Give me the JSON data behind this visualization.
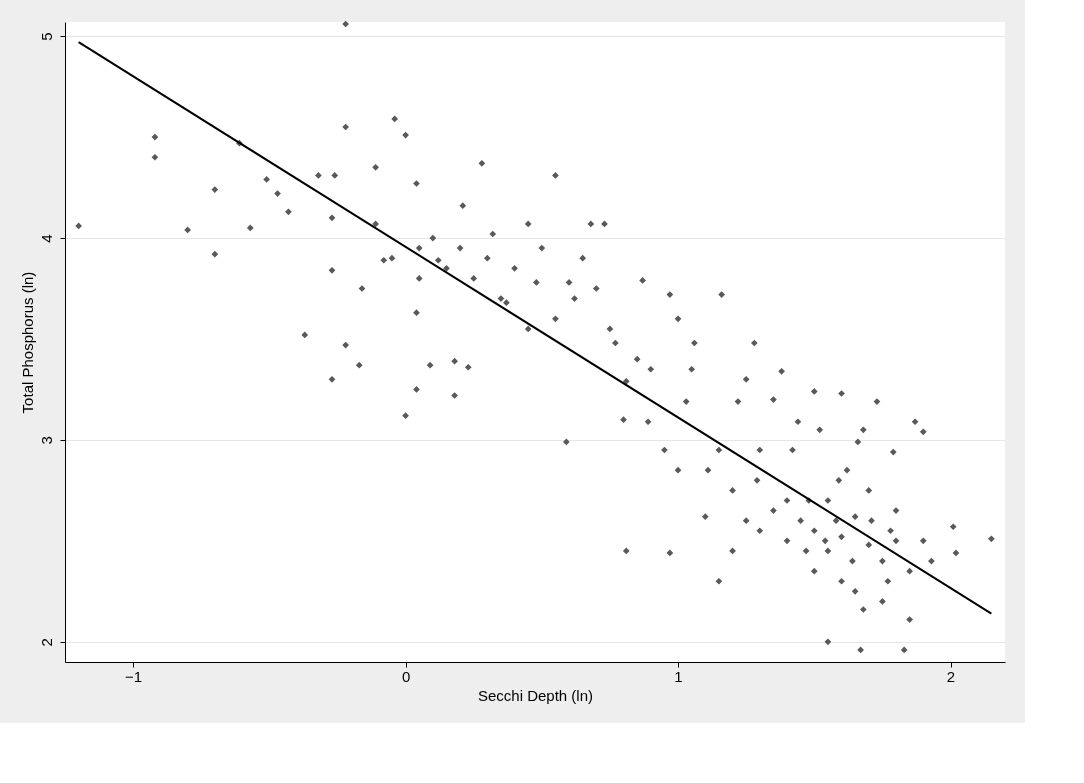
{
  "chart_data": {
    "type": "scatter",
    "xlabel": "Secchi Depth (ln)",
    "ylabel": "Total Phosphorus (ln)",
    "xlim": [
      -1.25,
      2.2
    ],
    "ylim": [
      1.9,
      5.07
    ],
    "xticks": [
      -1,
      0,
      1,
      2
    ],
    "yticks": [
      2,
      3,
      4,
      5
    ],
    "grid": "y",
    "series": [
      {
        "marker": "diamond",
        "color": "#595959",
        "x": [
          -1.2,
          -0.92,
          -0.92,
          -0.8,
          -0.7,
          -0.7,
          -0.57,
          -0.61,
          -0.51,
          -0.47,
          -0.43,
          -0.37,
          -0.32,
          -0.27,
          -0.27,
          -0.27,
          -0.26,
          -0.22,
          -0.22,
          -0.22,
          -0.16,
          -0.17,
          -0.11,
          -0.11,
          -0.08,
          -0.04,
          0.0,
          0.0,
          0.04,
          0.04,
          0.04,
          0.09,
          0.12,
          0.18,
          0.18,
          0.21,
          0.23,
          0.28,
          0.32,
          0.37,
          0.45,
          0.48,
          0.55,
          0.59,
          0.6,
          0.68,
          0.73,
          0.77,
          0.81,
          0.81,
          0.87,
          0.89,
          0.97,
          0.97,
          1.03,
          1.06,
          1.11,
          1.16,
          1.15,
          1.22,
          1.28,
          1.29,
          1.38,
          1.4,
          1.44,
          1.48,
          1.5,
          1.54,
          1.55,
          1.59,
          1.6,
          1.64,
          1.66,
          1.67,
          1.68,
          1.71,
          1.73,
          1.77,
          1.79,
          1.8,
          1.83,
          1.85,
          1.87,
          1.9,
          1.93,
          2.01,
          2.02,
          2.15,
          1.45,
          1.5,
          1.55,
          1.6,
          1.65,
          1.7,
          1.75,
          1.4,
          1.35,
          1.3,
          1.25,
          1.2,
          1.55,
          1.62,
          1.7,
          1.8,
          1.85,
          1.9,
          1.5,
          1.6,
          1.42,
          1.52,
          1.68,
          1.78,
          1.58,
          1.47,
          1.1,
          1.0,
          0.95,
          1.15,
          0.9,
          0.85,
          0.75,
          0.7,
          0.65,
          0.62,
          0.55,
          0.5,
          0.45,
          0.4,
          0.35,
          0.3,
          0.25,
          0.2,
          0.15,
          0.1,
          0.05,
          -0.05,
          0.05,
          0.8,
          1.05,
          1.25,
          1.35,
          1.3,
          1.2,
          1.75,
          1.65,
          1.0
        ],
        "values": [
          4.06,
          4.5,
          4.4,
          4.04,
          4.24,
          3.92,
          4.05,
          4.47,
          4.29,
          4.22,
          4.13,
          3.52,
          4.31,
          3.84,
          3.3,
          4.1,
          4.31,
          3.47,
          5.06,
          4.55,
          3.75,
          3.37,
          4.35,
          4.07,
          3.89,
          4.59,
          4.51,
          3.12,
          3.25,
          3.63,
          4.27,
          3.37,
          3.89,
          3.39,
          3.22,
          4.16,
          3.36,
          4.37,
          4.02,
          3.68,
          4.07,
          3.78,
          4.31,
          2.99,
          3.78,
          4.07,
          4.07,
          3.48,
          3.29,
          2.45,
          3.79,
          3.09,
          3.72,
          2.44,
          3.19,
          3.48,
          2.85,
          3.72,
          2.3,
          3.19,
          3.48,
          2.8,
          3.34,
          2.5,
          3.09,
          2.7,
          3.24,
          2.5,
          2.0,
          2.8,
          3.23,
          2.4,
          2.99,
          1.96,
          2.16,
          2.6,
          3.19,
          2.3,
          2.94,
          2.5,
          1.96,
          2.11,
          3.09,
          3.04,
          2.4,
          2.57,
          2.44,
          2.51,
          2.6,
          2.55,
          2.45,
          2.52,
          2.62,
          2.48,
          2.4,
          2.7,
          2.65,
          2.55,
          2.6,
          2.75,
          2.7,
          2.85,
          2.75,
          2.65,
          2.35,
          2.5,
          2.35,
          2.3,
          2.95,
          3.05,
          3.05,
          2.55,
          2.6,
          2.45,
          2.62,
          2.85,
          2.95,
          2.95,
          3.35,
          3.4,
          3.55,
          3.75,
          3.9,
          3.7,
          3.6,
          3.95,
          3.55,
          3.85,
          3.7,
          3.9,
          3.8,
          3.95,
          3.85,
          4.0,
          3.95,
          3.9,
          3.8,
          3.1,
          3.35,
          3.3,
          3.2,
          2.95,
          2.45,
          2.2,
          2.25,
          3.6
        ]
      },
      {
        "type": "line",
        "marker": "none",
        "color": "#000000",
        "x": [
          -1.2,
          2.15
        ],
        "values": [
          4.97,
          2.14
        ]
      }
    ]
  }
}
